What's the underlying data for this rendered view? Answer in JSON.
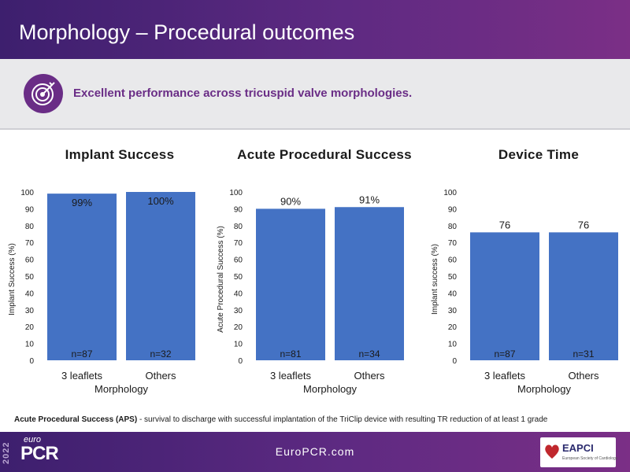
{
  "header": {
    "title": "Morphology – Procedural outcomes"
  },
  "banner": {
    "text": "Excellent performance across tricuspid valve morphologies.",
    "icon": "target-icon"
  },
  "chart_data": [
    {
      "type": "bar",
      "title": "Implant Success",
      "xlabel": "Morphology",
      "ylabel": "Implant Success (%)",
      "ylim": [
        0,
        100
      ],
      "yticks": [
        0,
        10,
        20,
        30,
        40,
        50,
        60,
        70,
        80,
        90,
        100
      ],
      "categories": [
        "3 leaflets",
        "Others"
      ],
      "values": [
        99,
        100
      ],
      "value_labels": [
        "99%",
        "100%"
      ],
      "n_labels": [
        "n=87",
        "n=32"
      ],
      "color": "#4472c4"
    },
    {
      "type": "bar",
      "title": "Acute Procedural Success",
      "xlabel": "Morphology",
      "ylabel": "Acute Procedural Success (%)",
      "ylim": [
        0,
        100
      ],
      "yticks": [
        0,
        10,
        20,
        30,
        40,
        50,
        60,
        70,
        80,
        90,
        100
      ],
      "categories": [
        "3 leaflets",
        "Others"
      ],
      "values": [
        90,
        91
      ],
      "value_labels": [
        "90%",
        "91%"
      ],
      "n_labels": [
        "n=81",
        "n=34"
      ],
      "color": "#4472c4"
    },
    {
      "type": "bar",
      "title": "Device Time",
      "xlabel": "Morphology",
      "ylabel": "Implant success (%)",
      "ylim": [
        0,
        100
      ],
      "yticks": [
        0,
        10,
        20,
        30,
        40,
        50,
        60,
        70,
        80,
        90,
        100
      ],
      "categories": [
        "3 leaflets",
        "Others"
      ],
      "values": [
        76,
        76
      ],
      "value_labels": [
        "76",
        "76"
      ],
      "n_labels": [
        "n=87",
        "n=31"
      ],
      "color": "#4472c4"
    }
  ],
  "footnote": {
    "term": "Acute Procedural Success (APS)",
    "definition": " - survival to discharge with successful implantation of the TriClip device with resulting TR reduction of at least 1 grade"
  },
  "footer": {
    "url": "EuroPCR.com",
    "logo_year": "2022",
    "logo_euro": "euro",
    "logo_pcr": "PCR",
    "partner_name": "EAPCI",
    "partner_sub": "European Society of Cardiology"
  }
}
